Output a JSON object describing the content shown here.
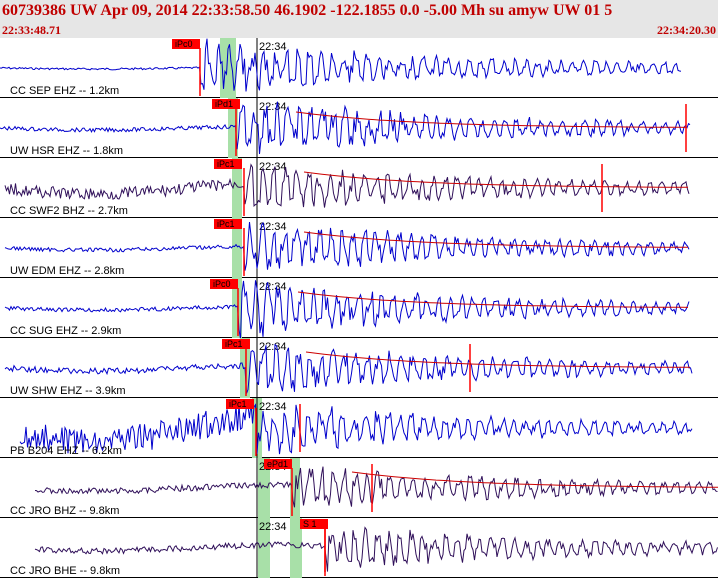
{
  "header": {
    "title": "60739386 UW Apr 09, 2014 22:33:58.50   46.1902 -122.1855  0.0 -5.00 Mh su amyw UW 01   5",
    "start_time": "22:33:48.71",
    "end_time": "22:34:20.30"
  },
  "colors": {
    "header_bg": "#e6e6e6",
    "header_text": "#c00000",
    "trace_blue": "#0000cc",
    "trace_dark": "#30105a",
    "pick_red": "#ff0000",
    "window_green": "#a8e0a8",
    "coda_red": "#cc0000"
  },
  "chart_data": {
    "type": "line",
    "title": "60739386 UW Apr 09, 2014 22:33:58.50   46.1902 -122.1855  0.0 -5.00 Mh su amyw UW 01   5",
    "time_range": [
      "22:33:48.71",
      "22:34:20.30"
    ],
    "tick_label": "22:34",
    "traces": [
      {
        "label": "CC SEP EHZ -- 1.2km",
        "color": "blue",
        "pick": "iPc0"
      },
      {
        "label": "UW HSR EHZ -- 1.8km",
        "color": "blue",
        "pick": "iPd1"
      },
      {
        "label": "CC SWF2 BHZ -- 2.7km",
        "color": "dark",
        "pick": "iPc1"
      },
      {
        "label": "UW EDM EHZ -- 2.8km",
        "color": "blue",
        "pick": "iPc1"
      },
      {
        "label": "CC SUG EHZ -- 2.9km",
        "color": "blue",
        "pick": "iPc0"
      },
      {
        "label": "UW SHW EHZ -- 3.9km",
        "color": "blue",
        "pick": "iPc1"
      },
      {
        "label": "PB B204 EHZ -- 6.2km",
        "color": "blue",
        "pick": "iPc1"
      },
      {
        "label": "CC JRO BHZ -- 9.8km",
        "color": "dark",
        "pick": "ePd1"
      },
      {
        "label": "CC JRO BHE -- 9.8km",
        "color": "dark",
        "pick": "S 1"
      }
    ]
  }
}
